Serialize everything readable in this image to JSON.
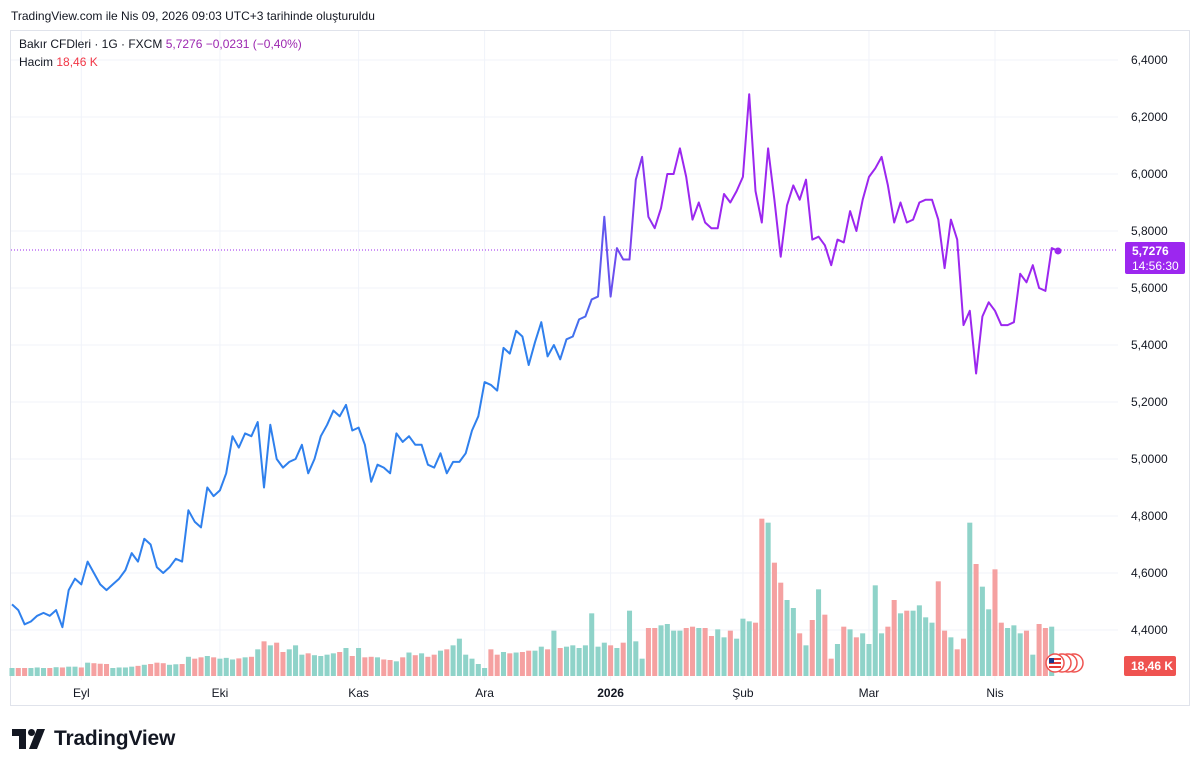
{
  "header": {
    "caption": "TradingView.com ile Nis 09, 2026 09:03 UTC+3 tarihinde oluşturuldu"
  },
  "legend": {
    "symbol": "Bakır CFDleri · 1G · FXCM",
    "price": "5,7276",
    "change": "−0,0231 (−0,40%)",
    "volume_label": "Hacim",
    "volume_value": "18,46 K"
  },
  "last_price_tag": {
    "price": "5,7276",
    "countdown": "14:56:30"
  },
  "volume_tag": "18,46 K",
  "brand": {
    "name": "TradingView"
  },
  "colors": {
    "line_start": "#2f80ed",
    "line_end": "#9c27ef",
    "volume_up": "#8fd3c9",
    "volume_down": "#f5a1a1",
    "price_tag": "#9c27ef",
    "volume_tag": "#ef5350"
  },
  "chart_data": {
    "type": "line",
    "title": "Bakır CFDleri · 1G · FXCM",
    "ylim": [
      4.2,
      6.5
    ],
    "yticks": [
      4.4,
      4.6,
      4.8,
      5.0,
      5.2,
      5.4,
      5.6,
      5.8,
      6.0,
      6.2,
      6.4
    ],
    "ytick_labels": [
      "4,4000",
      "4,6000",
      "4,8000",
      "5,0000",
      "5,2000",
      "5,4000",
      "5,6000",
      "5,8000",
      "6,0000",
      "6,2000",
      "6,4000"
    ],
    "xtick_labels": [
      "Eyl",
      "Eki",
      "Kas",
      "Ara",
      "2026",
      "Şub",
      "Mar",
      "Nis"
    ],
    "xtick_index": [
      11,
      33,
      55,
      75,
      95,
      116,
      136,
      156
    ],
    "series": [
      {
        "name": "Bakır CFDleri",
        "values": [
          4.49,
          4.47,
          4.42,
          4.43,
          4.45,
          4.46,
          4.45,
          4.47,
          4.41,
          4.54,
          4.58,
          4.56,
          4.64,
          4.6,
          4.56,
          4.54,
          4.56,
          4.58,
          4.61,
          4.67,
          4.64,
          4.72,
          4.7,
          4.62,
          4.6,
          4.62,
          4.65,
          4.64,
          4.82,
          4.78,
          4.76,
          4.9,
          4.87,
          4.89,
          4.95,
          5.08,
          5.04,
          5.09,
          5.08,
          5.13,
          4.9,
          5.12,
          5.0,
          4.97,
          4.99,
          5.0,
          5.05,
          4.95,
          5.0,
          5.08,
          5.12,
          5.17,
          5.15,
          5.19,
          5.1,
          5.11,
          5.05,
          4.92,
          4.98,
          4.97,
          4.95,
          5.09,
          5.06,
          5.08,
          5.05,
          5.05,
          4.98,
          4.97,
          5.02,
          4.95,
          4.99,
          4.99,
          5.02,
          5.1,
          5.15,
          5.27,
          5.26,
          5.24,
          5.39,
          5.37,
          5.45,
          5.43,
          5.33,
          5.41,
          5.48,
          5.36,
          5.4,
          5.35,
          5.42,
          5.43,
          5.49,
          5.5,
          5.56,
          5.57,
          5.85,
          5.57,
          5.74,
          5.7,
          5.7,
          5.98,
          6.06,
          5.85,
          5.81,
          5.88,
          6.0,
          6.0,
          6.09,
          5.99,
          5.84,
          5.9,
          5.83,
          5.81,
          5.81,
          5.93,
          5.9,
          5.94,
          5.99,
          6.28,
          5.94,
          5.83,
          6.09,
          5.91,
          5.71,
          5.89,
          5.96,
          5.91,
          5.98,
          5.77,
          5.78,
          5.75,
          5.68,
          5.77,
          5.76,
          5.87,
          5.8,
          5.91,
          5.99,
          6.02,
          6.06,
          5.96,
          5.83,
          5.9,
          5.83,
          5.84,
          5.9,
          5.91,
          5.91,
          5.84,
          5.67,
          5.84,
          5.77,
          5.47,
          5.52,
          5.3,
          5.5,
          5.55,
          5.52,
          5.47,
          5.47,
          5.48,
          5.65,
          5.62,
          5.68,
          5.6,
          5.59,
          5.74,
          5.73
        ]
      }
    ],
    "volume": {
      "name": "Hacim",
      "values": [
        0.3,
        0.3,
        0.3,
        0.3,
        0.32,
        0.3,
        0.3,
        0.33,
        0.32,
        0.35,
        0.35,
        0.32,
        0.5,
        0.48,
        0.46,
        0.45,
        0.3,
        0.32,
        0.32,
        0.35,
        0.38,
        0.42,
        0.45,
        0.5,
        0.48,
        0.42,
        0.44,
        0.45,
        0.72,
        0.65,
        0.7,
        0.75,
        0.7,
        0.65,
        0.68,
        0.62,
        0.66,
        0.7,
        0.72,
        1.0,
        1.3,
        1.15,
        1.25,
        0.9,
        1.0,
        1.15,
        0.8,
        0.85,
        0.78,
        0.75,
        0.8,
        0.85,
        0.9,
        1.05,
        0.75,
        1.05,
        0.7,
        0.72,
        0.7,
        0.62,
        0.6,
        0.55,
        0.7,
        0.88,
        0.78,
        0.85,
        0.72,
        0.8,
        0.95,
        1.0,
        1.15,
        1.4,
        0.8,
        0.65,
        0.45,
        0.3,
        1.0,
        0.8,
        0.9,
        0.85,
        0.88,
        0.9,
        0.95,
        0.95,
        1.1,
        1.0,
        1.7,
        1.05,
        1.1,
        1.15,
        1.05,
        1.15,
        2.35,
        1.1,
        1.25,
        1.15,
        1.05,
        1.25,
        2.45,
        1.3,
        0.65,
        1.8,
        1.8,
        1.9,
        1.95,
        1.7,
        1.7,
        1.8,
        1.85,
        1.8,
        1.8,
        1.5,
        1.75,
        1.45,
        1.7,
        1.4,
        2.15,
        2.05,
        2.0,
        5.9,
        5.75,
        4.25,
        3.5,
        2.85,
        2.55,
        1.6,
        1.15,
        2.1,
        3.25,
        2.3,
        0.65,
        1.2,
        1.85,
        1.75,
        1.45,
        1.6,
        1.2,
        3.4,
        1.6,
        1.85,
        2.85,
        2.35,
        2.45,
        2.45,
        2.65,
        2.2,
        2.0,
        3.55,
        1.7,
        1.45,
        1.0,
        1.4,
        5.75,
        4.2,
        3.35,
        2.5,
        4.0,
        2.0,
        1.8,
        1.9,
        1.6,
        1.7,
        0.8,
        1.95,
        1.8,
        1.85
      ]
    }
  }
}
